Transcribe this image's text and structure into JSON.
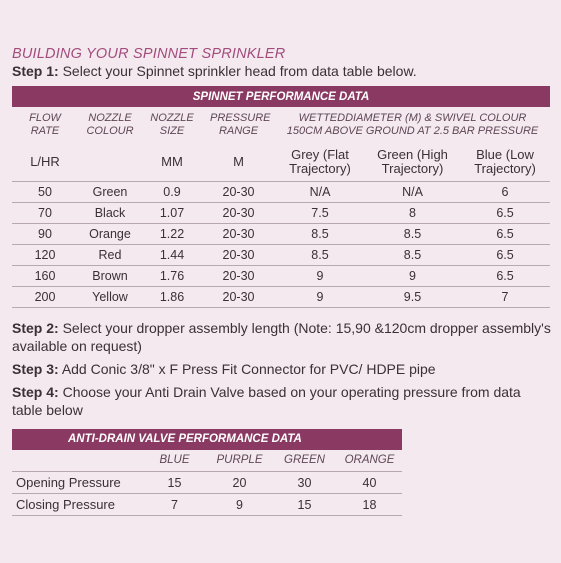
{
  "title": "BUILDING YOUR SPINNET SPRINKLER",
  "steps": [
    {
      "label": "Step 1:",
      "text": "Select your Spinnet sprinkler head from data table below."
    },
    {
      "label": "Step 2:",
      "text": "Select your dropper assembly length (Note: 15,90 &120cm dropper assembly's available on request)"
    },
    {
      "label": "Step 3:",
      "text": "Add Conic 3/8\" x F Press Fit Connector for PVC/ HDPE pipe"
    },
    {
      "label": "Step 4:",
      "text": "Choose your Anti Drain Valve based on your operating pressure from data table below"
    }
  ],
  "spinnet_table": {
    "title": "SPINNET PERFORMANCE DATA",
    "header": {
      "flow_rate": "FLOW RATE",
      "nozzle_colour": "NOZZLE COLOUR",
      "nozzle_size": "NOZZLE SIZE",
      "pressure_range": "PRESSURE RANGE",
      "wetted": "WETTEDDIAMETER (M) & SWIVEL COLOUR 150CM ABOVE GROUND AT 2.5 BAR PRESSURE"
    },
    "units": {
      "flow_rate": "L/HR",
      "nozzle_size": "MM",
      "pressure_range": "M"
    },
    "subheaders": [
      "Grey (Flat Trajectory)",
      "Green (High Trajectory)",
      "Blue (Low Trajectory)"
    ],
    "rows": [
      [
        "50",
        "Green",
        "0.9",
        "20-30",
        "N/A",
        "N/A",
        "6"
      ],
      [
        "70",
        "Black",
        "1.07",
        "20-30",
        "7.5",
        "8",
        "6.5"
      ],
      [
        "90",
        "Orange",
        "1.22",
        "20-30",
        "8.5",
        "8.5",
        "6.5"
      ],
      [
        "120",
        "Red",
        "1.44",
        "20-30",
        "8.5",
        "8.5",
        "6.5"
      ],
      [
        "160",
        "Brown",
        "1.76",
        "20-30",
        "9",
        "9",
        "6.5"
      ],
      [
        "200",
        "Yellow",
        "1.86",
        "20-30",
        "9",
        "9.5",
        "7"
      ]
    ]
  },
  "valve_table": {
    "title": "ANTI-DRAIN VALVE PERFORMANCE DATA",
    "header": [
      "BLUE",
      "PURPLE",
      "GREEN",
      "ORANGE"
    ],
    "rows": [
      {
        "label": "Opening Pressure",
        "values": [
          "15",
          "20",
          "30",
          "40"
        ]
      },
      {
        "label": "Closing Pressure",
        "values": [
          "7",
          "9",
          "15",
          "18"
        ]
      }
    ]
  }
}
